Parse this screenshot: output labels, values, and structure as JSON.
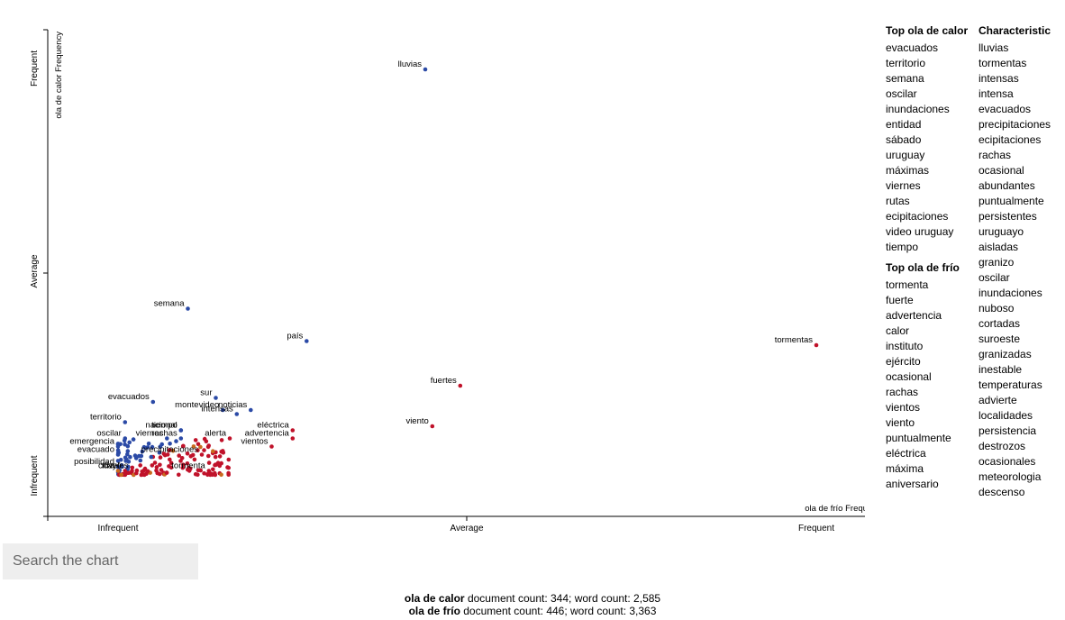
{
  "chart_data": {
    "type": "scatter",
    "xlabel": "ola de frío Frequency",
    "ylabel": "ola de calor Frequency",
    "x_ticks": [
      "Infrequent",
      "Average",
      "Frequent"
    ],
    "y_ticks": [
      "Frequent",
      "Average",
      "Infrequent"
    ],
    "xlim": [
      0,
      1
    ],
    "ylim": [
      0,
      1
    ],
    "colors": {
      "calor": "#2b4aa6",
      "frio": "#c0122a",
      "neutral": "#c96a1e"
    },
    "labeled_points": [
      {
        "term": "lluvias",
        "x": 0.44,
        "y": 1.0,
        "group": "calor"
      },
      {
        "term": "semana",
        "x": 0.1,
        "y": 0.41,
        "group": "calor"
      },
      {
        "term": "país",
        "x": 0.27,
        "y": 0.33,
        "group": "calor"
      },
      {
        "term": "tormentas",
        "x": 1.0,
        "y": 0.32,
        "group": "frio"
      },
      {
        "term": "fuertes",
        "x": 0.49,
        "y": 0.22,
        "group": "frio"
      },
      {
        "term": "viento",
        "x": 0.45,
        "y": 0.12,
        "group": "frio"
      },
      {
        "term": "evacuados",
        "x": 0.05,
        "y": 0.18,
        "group": "calor"
      },
      {
        "term": "sur",
        "x": 0.14,
        "y": 0.19,
        "group": "calor"
      },
      {
        "term": "montevideo",
        "x": 0.15,
        "y": 0.16,
        "group": "calor"
      },
      {
        "term": "noticias",
        "x": 0.19,
        "y": 0.16,
        "group": "calor"
      },
      {
        "term": "intensas",
        "x": 0.17,
        "y": 0.15,
        "group": "calor"
      },
      {
        "term": "eléctrica",
        "x": 0.25,
        "y": 0.11,
        "group": "frio"
      },
      {
        "term": "advertencia",
        "x": 0.25,
        "y": 0.09,
        "group": "frio"
      },
      {
        "term": "territorio",
        "x": 0.01,
        "y": 0.13,
        "group": "calor"
      },
      {
        "term": "tiempo",
        "x": 0.09,
        "y": 0.11,
        "group": "calor"
      },
      {
        "term": "oscilar",
        "x": 0.01,
        "y": 0.09,
        "group": "calor"
      },
      {
        "term": "viernes",
        "x": 0.07,
        "y": 0.09,
        "group": "calor"
      },
      {
        "term": "nacional",
        "x": 0.09,
        "y": 0.11,
        "group": "calor"
      },
      {
        "term": "alerta",
        "x": 0.16,
        "y": 0.09,
        "group": "frio"
      },
      {
        "term": "rachas",
        "x": 0.09,
        "y": 0.09,
        "group": "calor"
      },
      {
        "term": "vientos",
        "x": 0.22,
        "y": 0.07,
        "group": "frio"
      },
      {
        "term": "emergencia",
        "x": 0.0,
        "y": 0.07,
        "group": "calor"
      },
      {
        "term": "evacuado",
        "x": 0.0,
        "y": 0.05,
        "group": "calor"
      },
      {
        "term": "precipitaciones",
        "x": 0.12,
        "y": 0.05,
        "group": "frio"
      },
      {
        "term": "posibilidad",
        "x": 0.0,
        "y": 0.02,
        "group": "calor"
      },
      {
        "term": "cifra",
        "x": 0.0,
        "y": 0.01,
        "group": "neutral"
      },
      {
        "term": "tormenta",
        "x": 0.13,
        "y": 0.01,
        "group": "frio"
      },
      {
        "term": "cayó",
        "x": 0.01,
        "y": 0.01,
        "group": "frio"
      },
      {
        "term": "niveles",
        "x": 0.02,
        "y": 0.01,
        "group": "frio"
      }
    ]
  },
  "top_calor": {
    "title": "Top ola de calor",
    "items": [
      "evacuados",
      "territorio",
      "semana",
      "oscilar",
      "inundaciones",
      "entidad",
      "sábado",
      "uruguay",
      "máximas",
      "viernes",
      "rutas",
      "ecipitaciones",
      "video uruguay",
      "tiempo"
    ]
  },
  "top_frio": {
    "title": "Top ola de frío",
    "items": [
      "tormenta",
      "fuerte",
      "advertencia",
      "calor",
      "instituto",
      "ejército",
      "ocasional",
      "rachas",
      "vientos",
      "viento",
      "puntualmente",
      "eléctrica",
      "máxima",
      "aniversario"
    ]
  },
  "characteristic": {
    "title": "Characteristic",
    "items": [
      "lluvias",
      "tormentas",
      "intensas",
      "intensa",
      "evacuados",
      "precipitaciones",
      "ecipitaciones",
      "rachas",
      "ocasional",
      "abundantes",
      "puntualmente",
      "persistentes",
      "uruguayo",
      "aisladas",
      "granizo",
      "oscilar",
      "inundaciones",
      "nuboso",
      "cortadas",
      "suroeste",
      "granizadas",
      "inestable",
      "temperaturas",
      "advierte",
      "localidades",
      "persistencia",
      "destrozos",
      "ocasionales",
      "meteorologia",
      "descenso"
    ]
  },
  "search": {
    "placeholder": "Search the chart"
  },
  "footer": {
    "calor_label": "ola de calor",
    "calor_stats": " document count: 344; word count: 2,585",
    "frio_label": "ola de frío",
    "frio_stats": " document count: 446; word count: 3,363"
  }
}
